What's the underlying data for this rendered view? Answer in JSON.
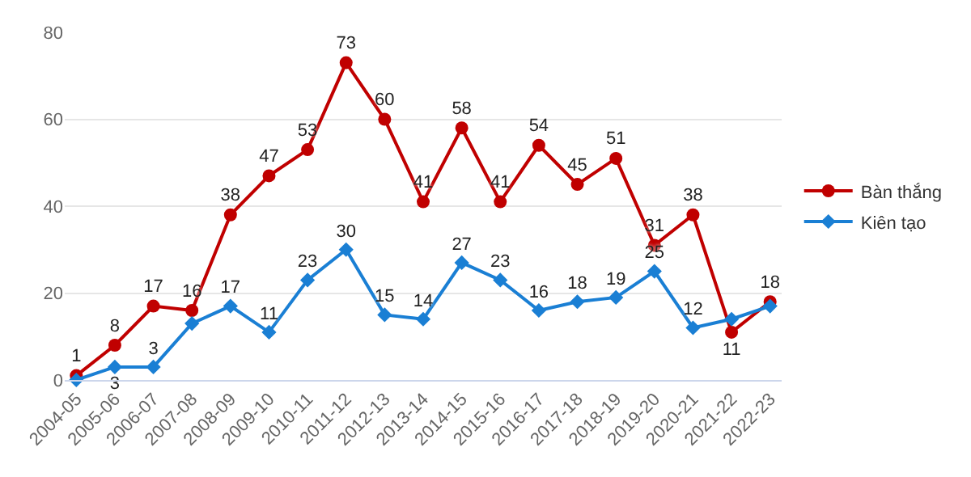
{
  "chart_data": {
    "type": "line",
    "categories": [
      "2004-05",
      "2005-06",
      "2006-07",
      "2007-08",
      "2008-09",
      "2009-10",
      "2010-11",
      "2011-12",
      "2012-13",
      "2013-14",
      "2014-15",
      "2015-16",
      "2016-17",
      "2017-18",
      "2018-19",
      "2019-20",
      "2020-21",
      "2021-22",
      "2022-23"
    ],
    "series": [
      {
        "name": "Bàn thắng",
        "color": "#c00000",
        "marker": "circle",
        "values": [
          1,
          8,
          17,
          16,
          38,
          47,
          53,
          73,
          60,
          41,
          58,
          41,
          54,
          45,
          51,
          31,
          38,
          11,
          18
        ],
        "value_labels": [
          "1",
          "8",
          "17",
          "16",
          "38",
          "47",
          "53",
          "73",
          "60",
          "41",
          "58",
          "41",
          "54",
          "45",
          "51",
          "31",
          "38",
          "11",
          "18"
        ]
      },
      {
        "name": "Kiên tạo",
        "color": "#1a7fd4",
        "marker": "diamond",
        "values": [
          0,
          3,
          3,
          13,
          17,
          11,
          23,
          30,
          15,
          14,
          27,
          23,
          16,
          18,
          19,
          25,
          12,
          14,
          17
        ],
        "value_labels": [
          null,
          "3",
          "3",
          null,
          "17",
          "11",
          "23",
          "30",
          "15",
          "14",
          "27",
          "23",
          "16",
          "18",
          "19",
          "25",
          "12",
          null,
          null
        ]
      }
    ],
    "ylim": [
      0,
      80
    ],
    "yticks": [
      0,
      20,
      40,
      60,
      80
    ],
    "grid": "y",
    "legend": "right"
  }
}
